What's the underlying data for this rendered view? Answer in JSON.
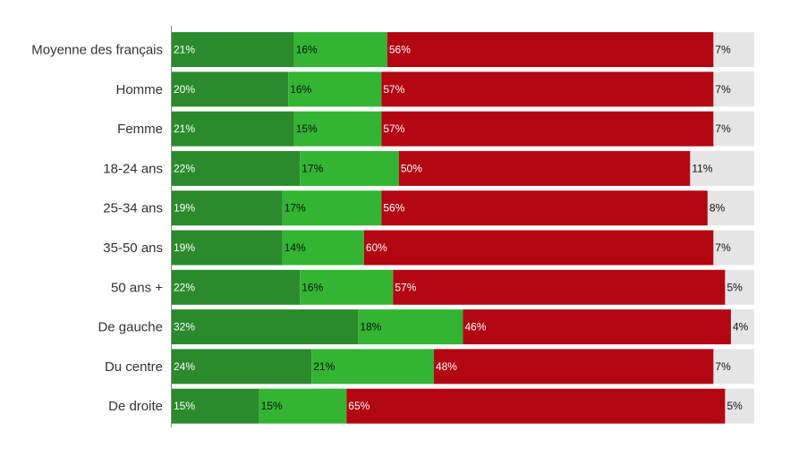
{
  "chart_data": {
    "type": "bar",
    "orientation": "horizontal",
    "stacked": true,
    "normalized": true,
    "categories": [
      "Moyenne des français",
      "Homme",
      "Femme",
      "18-24 ans",
      "25-34 ans",
      "35-50 ans",
      "50 ans +",
      "De gauche",
      "Du centre",
      "De droite"
    ],
    "series": [
      {
        "color": "#2a8a2c",
        "label_color": "#ffffff",
        "values": [
          21,
          20,
          21,
          22,
          19,
          19,
          22,
          32,
          24,
          15
        ],
        "labels": [
          "21%",
          "20%",
          "21%",
          "22%",
          "19%",
          "19%",
          "22%",
          "32%",
          "24%",
          "15%"
        ]
      },
      {
        "color": "#33b533",
        "label_color": "#111111",
        "values": [
          16,
          16,
          15,
          17,
          17,
          14,
          16,
          18,
          21,
          15
        ],
        "labels": [
          "16%",
          "16%",
          "15%",
          "17%",
          "17%",
          "14%",
          "16%",
          "18%",
          "21%",
          "15%"
        ]
      },
      {
        "color": "#b30613",
        "label_color": "#ffffff",
        "values": [
          56,
          57,
          57,
          50,
          56,
          60,
          57,
          46,
          48,
          65
        ],
        "labels": [
          "56%",
          "57%",
          "57%",
          "50%",
          "56%",
          "60%",
          "57%",
          "46%",
          "48%",
          "65%"
        ]
      },
      {
        "color": "#e5e5e5",
        "label_color": "#111111",
        "values": [
          7,
          7,
          7,
          11,
          8,
          7,
          5,
          4,
          7,
          5
        ],
        "labels": [
          "7%",
          "7%",
          "7%",
          "11%",
          "8%",
          "7%",
          "5%",
          "4%",
          "7%",
          "5%"
        ]
      }
    ],
    "xlim": [
      0,
      100
    ],
    "grid": false,
    "legend": "none",
    "title": "",
    "xlabel": "",
    "ylabel": ""
  }
}
